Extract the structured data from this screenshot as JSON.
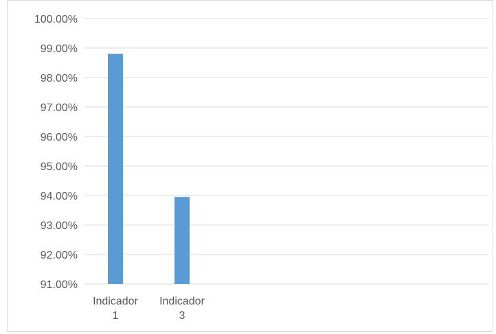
{
  "chart_data": {
    "type": "bar",
    "title": "",
    "xlabel": "",
    "ylabel": "",
    "categories": [
      [
        "Indicador",
        "1"
      ],
      [
        "Indicador",
        "3"
      ]
    ],
    "series": [
      {
        "values": [
          98.8,
          93.95
        ],
        "color": "#5b9bd5"
      }
    ],
    "ylim": [
      91,
      100
    ],
    "yticks": [
      91,
      92,
      93,
      94,
      95,
      96,
      97,
      98,
      99,
      100
    ],
    "ytick_labels": [
      "91.00%",
      "92.00%",
      "93.00%",
      "94.00%",
      "95.00%",
      "96.00%",
      "97.00%",
      "98.00%",
      "99.00%",
      "100.00%"
    ],
    "grid": true,
    "gridline_color": "#d9d9d9",
    "legend": "none"
  }
}
